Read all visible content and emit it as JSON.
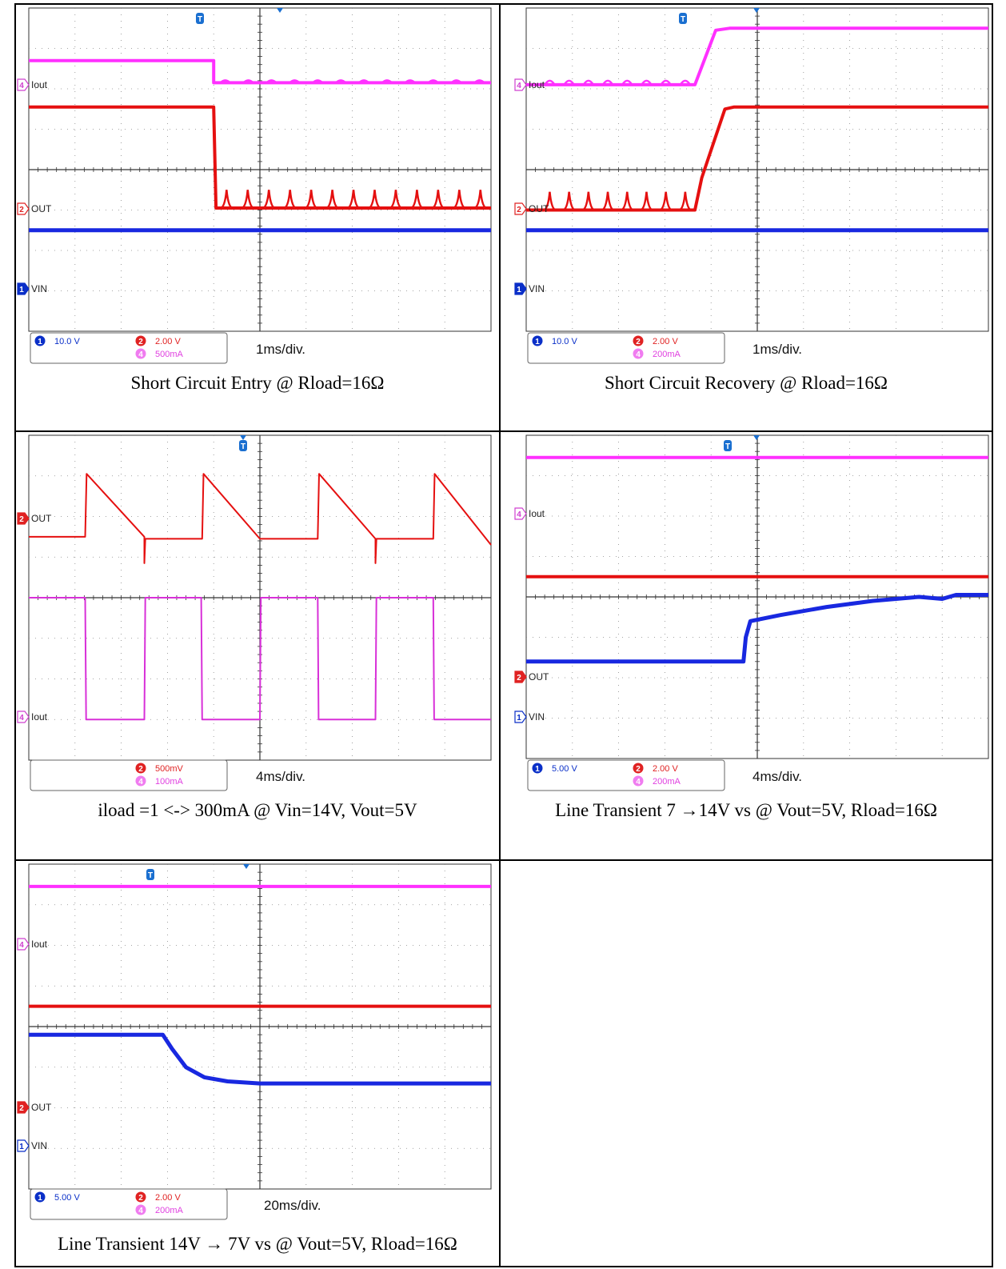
{
  "panels": [
    {
      "caption": "Short Circuit Entry @ Rload=16Ω",
      "timebase": "1ms/div.",
      "settings": [
        {
          "ch": "1",
          "value": "10.0 V",
          "color": "#0a2fc8"
        },
        {
          "ch": "2",
          "value": "2.00 V",
          "color": "#e02222"
        },
        {
          "ch": "4",
          "value": "500mA",
          "color": "#e040e0"
        }
      ],
      "markers": [
        {
          "ch": "4",
          "label": "Iout",
          "style": "outline",
          "color": "#d040d0"
        },
        {
          "ch": "2",
          "label": "OUT",
          "style": "outline",
          "color": "#e02222"
        },
        {
          "ch": "1",
          "label": "VIN",
          "style": "filled",
          "color": "#0a2fc8"
        }
      ],
      "chart_data": {
        "type": "line",
        "xlabel": "",
        "ylabel": "",
        "grid": true,
        "divisions": {
          "x": 10,
          "y": 8
        },
        "series": [
          {
            "color": "#ff30ff",
            "width": 4,
            "points": [
              [
                0,
                1.3
              ],
              [
                4,
                1.3
              ],
              [
                4,
                1.85
              ],
              [
                10,
                1.85
              ]
            ],
            "ripple": {
              "from": 4,
              "to": 10,
              "n": 12,
              "amp": 0.12,
              "dir": -1,
              "profile": "bump"
            }
          },
          {
            "color": "#e51010",
            "width": 4,
            "points": [
              [
                0,
                2.45
              ],
              [
                4,
                2.45
              ],
              [
                4.05,
                4.95
              ],
              [
                10,
                4.95
              ]
            ],
            "ripple": {
              "from": 4.05,
              "to": 10,
              "n": 13,
              "amp": 0.45,
              "dir": -1,
              "profile": "spike"
            }
          },
          {
            "color": "#1828e0",
            "width": 5,
            "points": [
              [
                0,
                5.5
              ],
              [
                10,
                5.5
              ]
            ]
          }
        ]
      }
    },
    {
      "caption": "Short Circuit Recovery @ Rload=16Ω",
      "timebase": "1ms/div.",
      "settings": [
        {
          "ch": "1",
          "value": "10.0 V",
          "color": "#0a2fc8"
        },
        {
          "ch": "2",
          "value": "2.00 V",
          "color": "#e02222"
        },
        {
          "ch": "4",
          "value": "200mA",
          "color": "#e040e0"
        }
      ],
      "markers": [
        {
          "ch": "4",
          "label": "Iout",
          "style": "outline",
          "color": "#d040d0"
        },
        {
          "ch": "2",
          "label": "OUT",
          "style": "outline",
          "color": "#e02222"
        },
        {
          "ch": "1",
          "label": "VIN",
          "style": "filled",
          "color": "#0a2fc8"
        }
      ],
      "chart_data": {
        "type": "line",
        "xlabel": "",
        "ylabel": "",
        "grid": true,
        "divisions": {
          "x": 10,
          "y": 8
        },
        "series": [
          {
            "color": "#ff30ff",
            "width": 4,
            "points": [
              [
                0,
                1.9
              ],
              [
                3.65,
                1.9
              ],
              [
                4.1,
                0.55
              ],
              [
                4.4,
                0.5
              ],
              [
                10,
                0.5
              ]
            ],
            "ripple": {
              "from": 0.3,
              "to": 3.65,
              "n": 8,
              "amp": 0.2,
              "dir": -1,
              "profile": "bump"
            }
          },
          {
            "color": "#e51010",
            "width": 4,
            "points": [
              [
                0,
                5.0
              ],
              [
                3.65,
                5.0
              ],
              [
                3.8,
                4.2
              ],
              [
                4.3,
                2.5
              ],
              [
                4.5,
                2.45
              ],
              [
                10,
                2.45
              ]
            ],
            "ripple": {
              "from": 0.3,
              "to": 3.65,
              "n": 8,
              "amp": 0.45,
              "dir": -1,
              "profile": "spike"
            }
          },
          {
            "color": "#1828e0",
            "width": 5,
            "points": [
              [
                0,
                5.5
              ],
              [
                10,
                5.5
              ]
            ]
          }
        ]
      }
    },
    {
      "caption": "iload =1 <-> 300mA @ Vin=14V, Vout=5V",
      "timebase": "4ms/div.",
      "settings": [
        {
          "ch": "2",
          "value": "500mV",
          "color": "#e02222"
        },
        {
          "ch": "4",
          "value": "100mA",
          "color": "#e040e0"
        }
      ],
      "markers": [
        {
          "ch": "2",
          "label": "OUT",
          "style": "filled",
          "color": "#e02222"
        },
        {
          "ch": "4",
          "label": "Iout",
          "style": "outline",
          "color": "#d040d0"
        }
      ],
      "chart_data": {
        "type": "line",
        "xlabel": "",
        "ylabel": "",
        "grid": true,
        "divisions": {
          "x": 10,
          "y": 8
        },
        "series": [
          {
            "color": "#e51010",
            "width": 2,
            "points": [
              [
                0,
                2.5
              ],
              [
                1.22,
                2.5
              ],
              [
                1.25,
                0.95
              ],
              [
                2.5,
                2.5
              ],
              [
                2.5,
                3.15
              ],
              [
                2.52,
                2.55
              ],
              [
                3.75,
                2.55
              ],
              [
                3.78,
                0.95
              ],
              [
                5.0,
                2.55
              ],
              [
                6.25,
                2.55
              ],
              [
                6.28,
                0.95
              ],
              [
                7.5,
                2.55
              ],
              [
                7.5,
                3.15
              ],
              [
                7.52,
                2.55
              ],
              [
                8.75,
                2.55
              ],
              [
                8.78,
                0.95
              ],
              [
                10,
                2.7
              ]
            ]
          },
          {
            "color": "#d830d8",
            "width": 2,
            "points": [
              [
                0,
                4.0
              ],
              [
                1.22,
                4.0
              ],
              [
                1.24,
                7.0
              ],
              [
                2.5,
                7.0
              ],
              [
                2.52,
                4.0
              ],
              [
                3.73,
                4.0
              ],
              [
                3.75,
                7.0
              ],
              [
                5.0,
                7.0
              ],
              [
                5.02,
                4.0
              ],
              [
                6.25,
                4.0
              ],
              [
                6.27,
                7.0
              ],
              [
                7.5,
                7.0
              ],
              [
                7.52,
                4.0
              ],
              [
                8.75,
                4.0
              ],
              [
                8.77,
                7.0
              ],
              [
                10,
                7.0
              ]
            ]
          }
        ]
      }
    },
    {
      "caption": "Line Transient 7 →14V vs @ Vout=5V, Rload=16Ω",
      "timebase": "4ms/div.",
      "settings": [
        {
          "ch": "1",
          "value": "5.00 V",
          "color": "#0a2fc8"
        },
        {
          "ch": "2",
          "value": "2.00 V",
          "color": "#e02222"
        },
        {
          "ch": "4",
          "value": "200mA",
          "color": "#e040e0"
        }
      ],
      "markers": [
        {
          "ch": "4",
          "label": "Iout",
          "style": "outline",
          "color": "#d040d0"
        },
        {
          "ch": "2",
          "label": "OUT",
          "style": "filled",
          "color": "#e02222"
        },
        {
          "ch": "1",
          "label": "VIN",
          "style": "outline",
          "color": "#0a2fc8"
        }
      ],
      "chart_data": {
        "type": "line",
        "xlabel": "",
        "ylabel": "",
        "grid": true,
        "divisions": {
          "x": 10,
          "y": 8
        },
        "series": [
          {
            "color": "#ff30ff",
            "width": 4,
            "points": [
              [
                0,
                0.55
              ],
              [
                10,
                0.55
              ]
            ]
          },
          {
            "color": "#e51010",
            "width": 4,
            "points": [
              [
                0,
                3.5
              ],
              [
                10,
                3.5
              ]
            ]
          },
          {
            "color": "#1828e0",
            "width": 5,
            "points": [
              [
                0,
                5.6
              ],
              [
                4.7,
                5.6
              ],
              [
                4.75,
                5.0
              ],
              [
                4.85,
                4.6
              ],
              [
                5.5,
                4.45
              ],
              [
                6.5,
                4.25
              ],
              [
                7.5,
                4.1
              ],
              [
                8.5,
                4.0
              ],
              [
                9.0,
                4.05
              ],
              [
                9.3,
                3.95
              ],
              [
                10,
                3.95
              ]
            ]
          }
        ]
      }
    },
    {
      "caption": "Line Transient 14V → 7V vs @ Vout=5V, Rload=16Ω",
      "timebase": "20ms/div.",
      "settings": [
        {
          "ch": "1",
          "value": "5.00 V",
          "color": "#0a2fc8"
        },
        {
          "ch": "2",
          "value": "2.00 V",
          "color": "#e02222"
        },
        {
          "ch": "4",
          "value": "200mA",
          "color": "#e040e0"
        }
      ],
      "markers": [
        {
          "ch": "4",
          "label": "Iout",
          "style": "outline",
          "color": "#d040d0"
        },
        {
          "ch": "2",
          "label": "OUT",
          "style": "filled",
          "color": "#e02222"
        },
        {
          "ch": "1",
          "label": "VIN",
          "style": "outline",
          "color": "#0a2fc8"
        }
      ],
      "chart_data": {
        "type": "line",
        "xlabel": "",
        "ylabel": "",
        "grid": true,
        "divisions": {
          "x": 10,
          "y": 8
        },
        "series": [
          {
            "color": "#ff30ff",
            "width": 4,
            "points": [
              [
                0,
                0.55
              ],
              [
                10,
                0.55
              ]
            ]
          },
          {
            "color": "#e51010",
            "width": 4,
            "points": [
              [
                0,
                3.5
              ],
              [
                10,
                3.5
              ]
            ]
          },
          {
            "color": "#1828e0",
            "width": 5,
            "points": [
              [
                0,
                4.2
              ],
              [
                2.9,
                4.2
              ],
              [
                3.1,
                4.55
              ],
              [
                3.4,
                5.0
              ],
              [
                3.8,
                5.25
              ],
              [
                4.3,
                5.35
              ],
              [
                5.0,
                5.4
              ],
              [
                10,
                5.4
              ]
            ]
          }
        ]
      }
    }
  ]
}
